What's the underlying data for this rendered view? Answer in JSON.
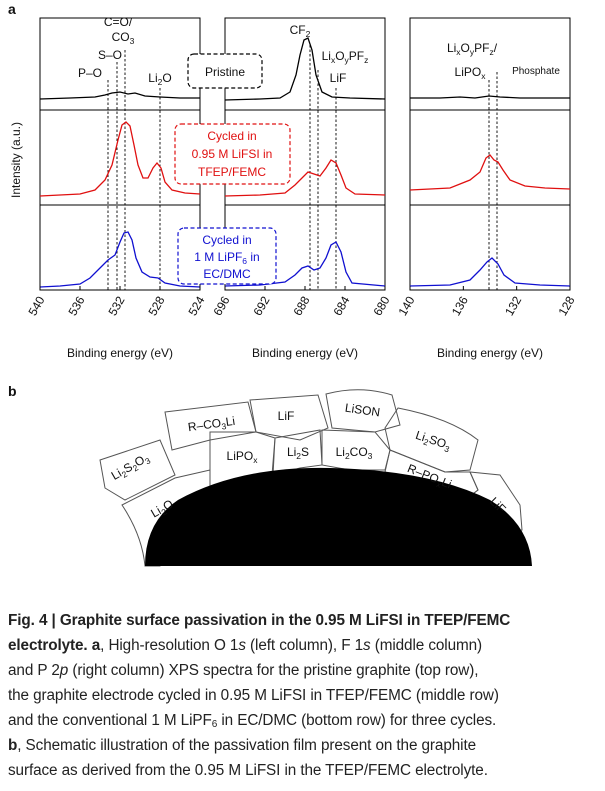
{
  "panel_a": {
    "label": "a",
    "y_label": "Intensity (a.u.)",
    "columns": [
      {
        "x_label": "Binding energy (eV)",
        "xticks": [
          "540",
          "536",
          "532",
          "528",
          "524"
        ],
        "annotations": [
          [
            "C=O/"
          ],
          [
            "CO",
            "3"
          ],
          [
            "S–O"
          ],
          [
            "P–O"
          ],
          [
            "Li",
            "2",
            "O"
          ]
        ]
      },
      {
        "x_label": "Binding energy (eV)",
        "xticks": [
          "696",
          "692",
          "688",
          "684",
          "680"
        ],
        "annotations": [
          [
            "CF",
            "2"
          ],
          [
            "Li",
            "x",
            "O",
            "y",
            "PF",
            "z"
          ],
          [
            "LiF"
          ]
        ]
      },
      {
        "x_label": "Binding energy (eV)",
        "xticks": [
          "140",
          "136",
          "132",
          "128"
        ],
        "annotations": [
          [
            "Li",
            "x",
            "O",
            "y",
            "PF",
            "z",
            "/"
          ],
          [
            "LiPO",
            "x"
          ],
          [
            "Phosphate"
          ]
        ]
      }
    ],
    "boxes": [
      [
        [
          "Pristine"
        ]
      ],
      [
        [
          "Cycled in"
        ],
        [
          "0.95 M LiFSI in"
        ],
        [
          "TFEP/FEMC"
        ]
      ],
      [
        [
          "Cycled in"
        ],
        [
          "1 M LiPF",
          "6",
          " in"
        ],
        [
          "EC/DMC"
        ]
      ]
    ]
  },
  "panel_b": {
    "label": "b",
    "compounds": [
      [
        "Li",
        "2",
        "S",
        "2",
        "O",
        "3"
      ],
      [
        "R–CO",
        "3",
        "Li"
      ],
      [
        "LiF"
      ],
      [
        "LiSON"
      ],
      [
        "Li",
        "2",
        "SO",
        "3"
      ],
      [
        "Li",
        "2",
        "O"
      ],
      [
        "LiPO",
        "x"
      ],
      [
        "Li",
        "2",
        "S"
      ],
      [
        "Li",
        "2",
        "CO",
        "3"
      ],
      [
        "R–PO",
        "x",
        "Li"
      ],
      [
        "LiF"
      ]
    ]
  },
  "caption": {
    "lines": [
      [
        "Fig. 4 | Graphite surface passivation in the 0.95 M LiFSI in TFEP/FEMC"
      ],
      [
        "electrolyte. a",
        ", High-resolution O 1",
        "s",
        " (left column), F 1",
        "s",
        " (middle column)"
      ],
      [
        "and P 2",
        "p",
        " (right column) XPS spectra for the pristine graphite (top row),"
      ],
      [
        "the graphite electrode cycled in 0.95 M LiFSI in TFEP/FEMC (middle row)"
      ],
      [
        "and the conventional 1 M LiPF",
        "6",
        " in EC/DMC (bottom row) for three cycles."
      ],
      [
        "b",
        ", Schematic illustration of the passivation film present on the graphite"
      ],
      [
        "surface as derived from the 0.95 M LiFSI in the TFEP/FEMC electrolyte."
      ]
    ]
  }
}
